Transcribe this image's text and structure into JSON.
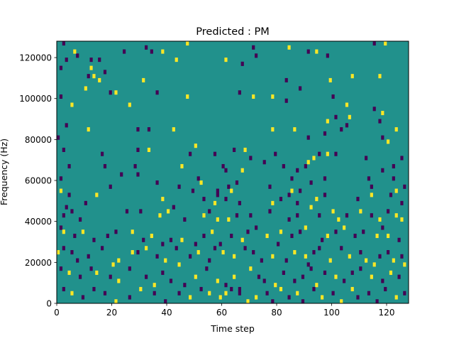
{
  "chart_data": {
    "type": "heatmap",
    "title": "Predicted : PM",
    "xlabel": "Time step",
    "ylabel": "Frequency (Hz)",
    "xlim": [
      0,
      128
    ],
    "ylim": [
      0,
      128000
    ],
    "grid": false,
    "rows": 64,
    "cols": 128,
    "value_range": [
      0,
      2
    ],
    "colors": {
      "0": "#440154",
      "1": "#21918c",
      "2": "#fde725"
    },
    "background_value": 1,
    "x_ticks": [
      0,
      20,
      40,
      60,
      80,
      100,
      120
    ],
    "y_ticks": [
      0,
      20000,
      40000,
      60000,
      80000,
      100000,
      120000
    ],
    "cells": [
      [
        2,
        63,
        0
      ],
      [
        3,
        59,
        0
      ],
      [
        7,
        60,
        0
      ],
      [
        12,
        59,
        0
      ],
      [
        15,
        59,
        0
      ],
      [
        32,
        62,
        0
      ],
      [
        47,
        63,
        2
      ],
      [
        71,
        62,
        0
      ],
      [
        84,
        62,
        2
      ],
      [
        91,
        61,
        0
      ],
      [
        94,
        61,
        2
      ],
      [
        115,
        63,
        0
      ],
      [
        119,
        63,
        2
      ],
      [
        1,
        57,
        0
      ],
      [
        6,
        61,
        2
      ],
      [
        12,
        57,
        2
      ],
      [
        17,
        56,
        0
      ],
      [
        24,
        61,
        0
      ],
      [
        34,
        61,
        0
      ],
      [
        38,
        61,
        2
      ],
      [
        43,
        59,
        2
      ],
      [
        61,
        59,
        2
      ],
      [
        67,
        58,
        0
      ],
      [
        72,
        60,
        0
      ],
      [
        98,
        60,
        0
      ],
      [
        11,
        55,
        0
      ],
      [
        13,
        55,
        2
      ],
      [
        15,
        54,
        2
      ],
      [
        31,
        54,
        2
      ],
      [
        83,
        54,
        0
      ],
      [
        99,
        54,
        2
      ],
      [
        107,
        55,
        2
      ],
      [
        117,
        55,
        2
      ],
      [
        1,
        50,
        0
      ],
      [
        10,
        52,
        2
      ],
      [
        19,
        51,
        0
      ],
      [
        21,
        51,
        2
      ],
      [
        36,
        51,
        0
      ],
      [
        47,
        50,
        2
      ],
      [
        66,
        51,
        0
      ],
      [
        71,
        50,
        2
      ],
      [
        88,
        52,
        0
      ],
      [
        100,
        50,
        0
      ],
      [
        105,
        48,
        2
      ],
      [
        115,
        47,
        0
      ],
      [
        5,
        48,
        2
      ],
      [
        26,
        48,
        2
      ],
      [
        78,
        50,
        2
      ],
      [
        83,
        49,
        0
      ],
      [
        101,
        45,
        0
      ],
      [
        118,
        46,
        2
      ],
      [
        106,
        45,
        2
      ],
      [
        117,
        44,
        0
      ],
      [
        98,
        44,
        2
      ],
      [
        0,
        40,
        0
      ],
      [
        3,
        43,
        0
      ],
      [
        11,
        42,
        2
      ],
      [
        29,
        42,
        0
      ],
      [
        33,
        42,
        0
      ],
      [
        42,
        42,
        2
      ],
      [
        78,
        42,
        2
      ],
      [
        86,
        42,
        2
      ],
      [
        91,
        40,
        0
      ],
      [
        97,
        41,
        0
      ],
      [
        103,
        42,
        0
      ],
      [
        105,
        43,
        0
      ],
      [
        118,
        40,
        0
      ],
      [
        120,
        39,
        2
      ],
      [
        123,
        42,
        2
      ],
      [
        2,
        37,
        0
      ],
      [
        16,
        36,
        0
      ],
      [
        29,
        37,
        0
      ],
      [
        33,
        37,
        2
      ],
      [
        50,
        38,
        2
      ],
      [
        57,
        36,
        0
      ],
      [
        64,
        37,
        0
      ],
      [
        68,
        37,
        2
      ],
      [
        70,
        35,
        0
      ],
      [
        79,
        36,
        0
      ],
      [
        82,
        33,
        0
      ],
      [
        87,
        32,
        0
      ],
      [
        90,
        33,
        0
      ],
      [
        93,
        35,
        2
      ],
      [
        95,
        36,
        0
      ],
      [
        98,
        36,
        2
      ],
      [
        101,
        36,
        0
      ],
      [
        4,
        33,
        0
      ],
      [
        17,
        33,
        0
      ],
      [
        28,
        33,
        0
      ],
      [
        45,
        33,
        2
      ],
      [
        48,
        36,
        0
      ],
      [
        60,
        33,
        0
      ],
      [
        61,
        32,
        0
      ],
      [
        67,
        32,
        2
      ],
      [
        75,
        34,
        0
      ],
      [
        91,
        34,
        2
      ],
      [
        112,
        35,
        0
      ],
      [
        118,
        32,
        0
      ],
      [
        122,
        33,
        0
      ],
      [
        125,
        35,
        0
      ],
      [
        1,
        30,
        0
      ],
      [
        4,
        26,
        0
      ],
      [
        23,
        31,
        0
      ],
      [
        29,
        31,
        0
      ],
      [
        36,
        29,
        0
      ],
      [
        51,
        30,
        0
      ],
      [
        58,
        27,
        0
      ],
      [
        62,
        28,
        0
      ],
      [
        65,
        29,
        0
      ],
      [
        77,
        28,
        0
      ],
      [
        85,
        30,
        0
      ],
      [
        88,
        27,
        0
      ],
      [
        92,
        29,
        0
      ],
      [
        97,
        30,
        0
      ],
      [
        113,
        30,
        0
      ],
      [
        114,
        28,
        0
      ],
      [
        122,
        30,
        0
      ],
      [
        126,
        28,
        0
      ],
      [
        1,
        27,
        2
      ],
      [
        3,
        23,
        0
      ],
      [
        14,
        26,
        2
      ],
      [
        19,
        28,
        0
      ],
      [
        38,
        25,
        2
      ],
      [
        44,
        28,
        0
      ],
      [
        49,
        27,
        0
      ],
      [
        52,
        29,
        2
      ],
      [
        53,
        25,
        0
      ],
      [
        57,
        24,
        2
      ],
      [
        58,
        26,
        0
      ],
      [
        61,
        25,
        0
      ],
      [
        63,
        27,
        2
      ],
      [
        66,
        24,
        0
      ],
      [
        78,
        24,
        2
      ],
      [
        81,
        25,
        0
      ],
      [
        84,
        26,
        0
      ],
      [
        85,
        27,
        2
      ],
      [
        87,
        24,
        0
      ],
      [
        94,
        25,
        2
      ],
      [
        97,
        26,
        0
      ],
      [
        109,
        25,
        0
      ],
      [
        114,
        26,
        2
      ],
      [
        121,
        26,
        0
      ],
      [
        123,
        27,
        2
      ],
      [
        125,
        24,
        0
      ],
      [
        2,
        21,
        0
      ],
      [
        5,
        22,
        0
      ],
      [
        8,
        20,
        0
      ],
      [
        10,
        24,
        0
      ],
      [
        25,
        22,
        0
      ],
      [
        30,
        22,
        0
      ],
      [
        37,
        21,
        2
      ],
      [
        40,
        22,
        2
      ],
      [
        42,
        23,
        0
      ],
      [
        46,
        20,
        0
      ],
      [
        53,
        21,
        2
      ],
      [
        55,
        22,
        0
      ],
      [
        58,
        20,
        2
      ],
      [
        62,
        20,
        2
      ],
      [
        65,
        21,
        0
      ],
      [
        70,
        21,
        0
      ],
      [
        77,
        22,
        0
      ],
      [
        84,
        20,
        0
      ],
      [
        87,
        21,
        0
      ],
      [
        92,
        23,
        2
      ],
      [
        95,
        21,
        0
      ],
      [
        100,
        22,
        2
      ],
      [
        102,
        20,
        2
      ],
      [
        105,
        21,
        0
      ],
      [
        110,
        22,
        2
      ],
      [
        114,
        21,
        0
      ],
      [
        117,
        20,
        2
      ],
      [
        120,
        22,
        0
      ],
      [
        123,
        21,
        2
      ],
      [
        125,
        20,
        2
      ],
      [
        1,
        18,
        0
      ],
      [
        2,
        17,
        2
      ],
      [
        6,
        16,
        0
      ],
      [
        9,
        17,
        2
      ],
      [
        13,
        15,
        0
      ],
      [
        18,
        16,
        0
      ],
      [
        21,
        17,
        0
      ],
      [
        27,
        17,
        2
      ],
      [
        31,
        15,
        0
      ],
      [
        34,
        16,
        2
      ],
      [
        38,
        14,
        0
      ],
      [
        41,
        15,
        0
      ],
      [
        45,
        15,
        2
      ],
      [
        50,
        14,
        0
      ],
      [
        53,
        16,
        0
      ],
      [
        56,
        17,
        2
      ],
      [
        59,
        14,
        0
      ],
      [
        63,
        16,
        0
      ],
      [
        67,
        15,
        2
      ],
      [
        69,
        17,
        0
      ],
      [
        72,
        18,
        0
      ],
      [
        76,
        16,
        2
      ],
      [
        80,
        14,
        0
      ],
      [
        81,
        17,
        2
      ],
      [
        85,
        16,
        0
      ],
      [
        88,
        17,
        0
      ],
      [
        90,
        18,
        2
      ],
      [
        96,
        15,
        0
      ],
      [
        98,
        16,
        2
      ],
      [
        101,
        17,
        0
      ],
      [
        104,
        18,
        2
      ],
      [
        108,
        16,
        0
      ],
      [
        111,
        17,
        0
      ],
      [
        116,
        16,
        2
      ],
      [
        118,
        18,
        0
      ],
      [
        120,
        16,
        2
      ],
      [
        124,
        15,
        0
      ],
      [
        0,
        12,
        2
      ],
      [
        2,
        13,
        0
      ],
      [
        5,
        12,
        0
      ],
      [
        7,
        10,
        0
      ],
      [
        11,
        11,
        0
      ],
      [
        16,
        13,
        0
      ],
      [
        20,
        9,
        2
      ],
      [
        22,
        10,
        2
      ],
      [
        27,
        12,
        2
      ],
      [
        29,
        12,
        0
      ],
      [
        32,
        13,
        2
      ],
      [
        36,
        11,
        0
      ],
      [
        39,
        10,
        2
      ],
      [
        43,
        13,
        0
      ],
      [
        44,
        9,
        2
      ],
      [
        48,
        11,
        0
      ],
      [
        51,
        12,
        2
      ],
      [
        55,
        10,
        0
      ],
      [
        57,
        13,
        0
      ],
      [
        60,
        12,
        2
      ],
      [
        64,
        11,
        2
      ],
      [
        68,
        13,
        0
      ],
      [
        71,
        12,
        0
      ],
      [
        74,
        10,
        0
      ],
      [
        78,
        11,
        2
      ],
      [
        83,
        10,
        0
      ],
      [
        86,
        12,
        2
      ],
      [
        90,
        11,
        2
      ],
      [
        91,
        9,
        0
      ],
      [
        93,
        12,
        0
      ],
      [
        95,
        13,
        0
      ],
      [
        99,
        10,
        2
      ],
      [
        103,
        13,
        0
      ],
      [
        106,
        11,
        2
      ],
      [
        110,
        12,
        0
      ],
      [
        112,
        10,
        2
      ],
      [
        115,
        9,
        2
      ],
      [
        117,
        11,
        0
      ],
      [
        120,
        12,
        0
      ],
      [
        122,
        10,
        2
      ],
      [
        125,
        11,
        0
      ],
      [
        126,
        9,
        2
      ],
      [
        1,
        8,
        0
      ],
      [
        4,
        7,
        2
      ],
      [
        8,
        6,
        0
      ],
      [
        12,
        8,
        0
      ],
      [
        14,
        7,
        2
      ],
      [
        19,
        6,
        0
      ],
      [
        22,
        5,
        2
      ],
      [
        26,
        8,
        0
      ],
      [
        32,
        6,
        0
      ],
      [
        35,
        4,
        2
      ],
      [
        38,
        7,
        0
      ],
      [
        41,
        5,
        0
      ],
      [
        46,
        4,
        0
      ],
      [
        50,
        6,
        2
      ],
      [
        54,
        8,
        0
      ],
      [
        58,
        5,
        2
      ],
      [
        61,
        4,
        0
      ],
      [
        64,
        6,
        2
      ],
      [
        66,
        3,
        0
      ],
      [
        70,
        8,
        2
      ],
      [
        73,
        6,
        0
      ],
      [
        75,
        5,
        0
      ],
      [
        79,
        4,
        2
      ],
      [
        82,
        7,
        0
      ],
      [
        86,
        5,
        0
      ],
      [
        89,
        6,
        0
      ],
      [
        92,
        8,
        0
      ],
      [
        94,
        4,
        2
      ],
      [
        97,
        7,
        0
      ],
      [
        101,
        6,
        2
      ],
      [
        104,
        5,
        0
      ],
      [
        107,
        7,
        0
      ],
      [
        110,
        8,
        0
      ],
      [
        114,
        6,
        2
      ],
      [
        118,
        5,
        0
      ],
      [
        121,
        7,
        2
      ],
      [
        124,
        6,
        0
      ],
      [
        2,
        3,
        0
      ],
      [
        5,
        2,
        2
      ],
      [
        9,
        1,
        0
      ],
      [
        13,
        3,
        0
      ],
      [
        17,
        2,
        0
      ],
      [
        21,
        0,
        2
      ],
      [
        26,
        1,
        0
      ],
      [
        30,
        3,
        2
      ],
      [
        35,
        2,
        0
      ],
      [
        39,
        0,
        0
      ],
      [
        44,
        2,
        0
      ],
      [
        48,
        1,
        2
      ],
      [
        52,
        3,
        0
      ],
      [
        55,
        2,
        2
      ],
      [
        59,
        1,
        2
      ],
      [
        61,
        2,
        2
      ],
      [
        63,
        3,
        0
      ],
      [
        66,
        2,
        0
      ],
      [
        69,
        0,
        2
      ],
      [
        72,
        1,
        2
      ],
      [
        76,
        2,
        0
      ],
      [
        78,
        0,
        0
      ],
      [
        81,
        3,
        2
      ],
      [
        84,
        1,
        0
      ],
      [
        87,
        2,
        2
      ],
      [
        89,
        0,
        0
      ],
      [
        93,
        3,
        0
      ],
      [
        96,
        1,
        2
      ],
      [
        100,
        2,
        0
      ],
      [
        103,
        0,
        2
      ],
      [
        107,
        3,
        2
      ],
      [
        109,
        1,
        0
      ],
      [
        113,
        2,
        0
      ],
      [
        116,
        0,
        0
      ],
      [
        119,
        3,
        0
      ],
      [
        123,
        1,
        2
      ],
      [
        126,
        2,
        0
      ]
    ]
  }
}
